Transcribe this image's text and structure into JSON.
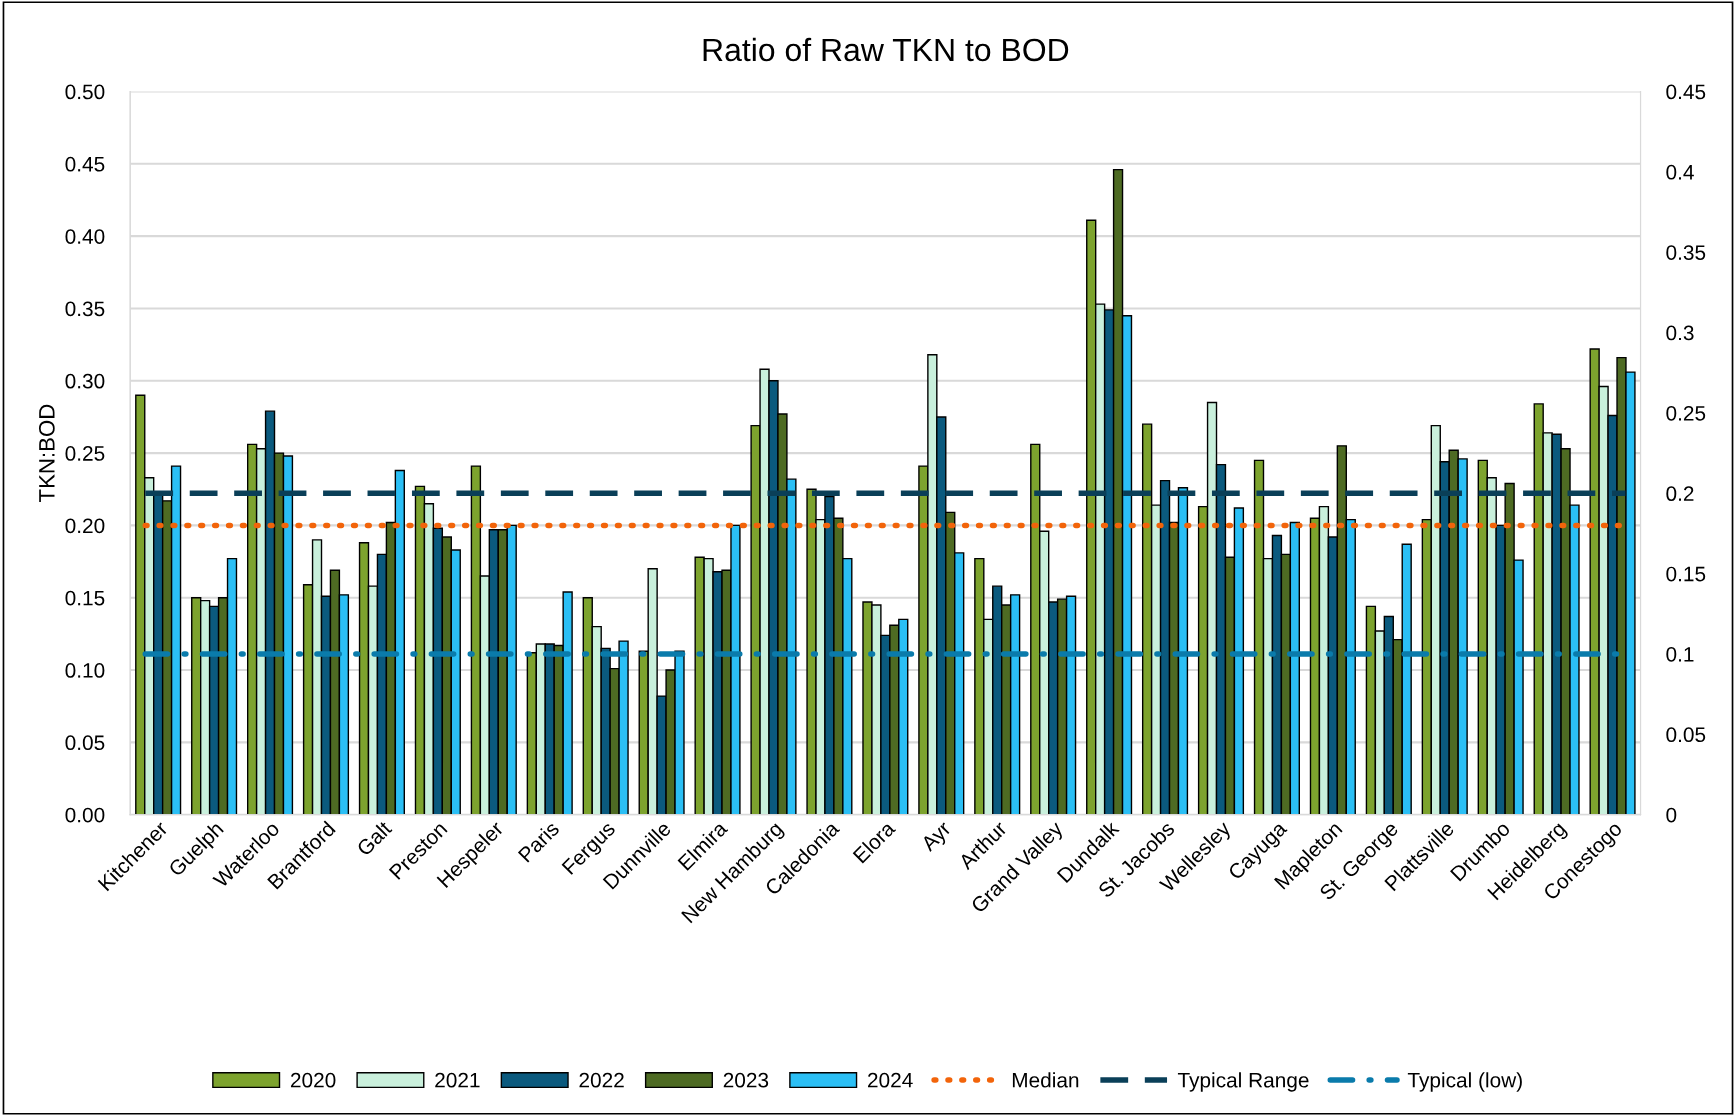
{
  "chart_data": {
    "type": "bar",
    "title": "Ratio of Raw TKN to BOD",
    "ylabel": "TKN:BOD",
    "categories": [
      "Kitchener",
      "Guelph",
      "Waterloo",
      "Brantford",
      "Galt",
      "Preston",
      "Hespeler",
      "Paris",
      "Fergus",
      "Dunnville",
      "Elmira",
      "New Hamburg",
      "Caledonia",
      "Elora",
      "Ayr",
      "Arthur",
      "Grand Valley",
      "Dundalk",
      "St. Jacobs",
      "Wellesley",
      "Cayuga",
      "Mapleton",
      "St. George",
      "Plattsville",
      "Drumbo",
      "Heidelberg",
      "Conestogo"
    ],
    "series": [
      {
        "name": "2020",
        "color": "#7da32e",
        "values": [
          0.29,
          0.15,
          0.256,
          0.159,
          0.188,
          0.227,
          0.241,
          0.112,
          0.15,
          0.113,
          0.178,
          0.269,
          0.225,
          0.147,
          0.241,
          0.177,
          0.256,
          0.411,
          0.27,
          0.213,
          0.245,
          0.205,
          0.144,
          0.204,
          0.245,
          0.284,
          0.322
        ]
      },
      {
        "name": "2021",
        "color": "#c9f0dc",
        "values": [
          0.233,
          0.148,
          0.253,
          0.19,
          0.158,
          0.215,
          0.165,
          0.118,
          0.13,
          0.17,
          0.177,
          0.308,
          0.204,
          0.145,
          0.318,
          0.135,
          0.196,
          0.353,
          0.214,
          0.285,
          0.177,
          0.213,
          0.127,
          0.269,
          0.233,
          0.264,
          0.296
        ]
      },
      {
        "name": "2022",
        "color": "#0b5a7e",
        "values": [
          0.222,
          0.144,
          0.279,
          0.151,
          0.18,
          0.198,
          0.197,
          0.118,
          0.115,
          0.082,
          0.168,
          0.3,
          0.22,
          0.124,
          0.275,
          0.158,
          0.147,
          0.349,
          0.231,
          0.242,
          0.193,
          0.192,
          0.137,
          0.244,
          0.2,
          0.263,
          0.276
        ]
      },
      {
        "name": "2023",
        "color": "#4e6b23",
        "values": [
          0.217,
          0.15,
          0.25,
          0.169,
          0.202,
          0.192,
          0.197,
          0.117,
          0.101,
          0.1,
          0.169,
          0.277,
          0.205,
          0.131,
          0.209,
          0.145,
          0.149,
          0.446,
          0.202,
          0.178,
          0.18,
          0.255,
          0.121,
          0.252,
          0.229,
          0.253,
          0.316
        ]
      },
      {
        "name": "2024",
        "color": "#2bbff5",
        "values": [
          0.241,
          0.177,
          0.248,
          0.152,
          0.238,
          0.183,
          0.2,
          0.154,
          0.12,
          0.113,
          0.2,
          0.232,
          0.177,
          0.135,
          0.181,
          0.152,
          0.151,
          0.345,
          0.226,
          0.212,
          0.202,
          0.204,
          0.187,
          0.246,
          0.176,
          0.214,
          0.306
        ]
      }
    ],
    "ylim": [
      0,
      0.5
    ],
    "yticks": [
      {
        "value": 0,
        "label": "0.00"
      },
      {
        "value": 0.05,
        "label": "0.05"
      },
      {
        "value": 0.1,
        "label": "0.10"
      },
      {
        "value": 0.15,
        "label": "0.15"
      },
      {
        "value": 0.2,
        "label": "0.20"
      },
      {
        "value": 0.25,
        "label": "0.25"
      },
      {
        "value": 0.3,
        "label": "0.30"
      },
      {
        "value": 0.35,
        "label": "0.35"
      },
      {
        "value": 0.4,
        "label": "0.40"
      },
      {
        "value": 0.45,
        "label": "0.45"
      },
      {
        "value": 0.5,
        "label": "0.50"
      }
    ],
    "y2lim": [
      0,
      0.45
    ],
    "y2ticks": [
      0,
      0.05,
      0.1,
      0.15,
      0.2,
      0.25,
      0.3,
      0.35,
      0.4,
      0.45
    ],
    "ref_lines": [
      {
        "axis": "y2",
        "value": 0.18,
        "label": "Median",
        "color": "#f2640a",
        "line_style": "dotted"
      },
      {
        "axis": "y2",
        "value": 0.2,
        "label": "Typical Range",
        "color": "#0a3f58",
        "line_style": "dashed"
      },
      {
        "axis": "y2",
        "value": 0.1,
        "label": "Typical (low)",
        "color": "#0a7bab",
        "line_style": "dashdot"
      }
    ],
    "grid": "y",
    "legend": "bottom"
  }
}
